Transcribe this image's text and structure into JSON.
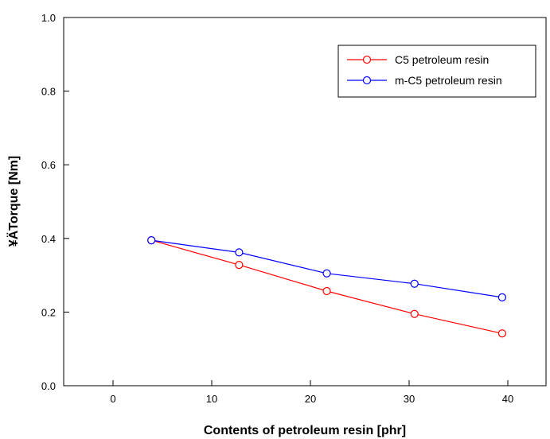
{
  "chart_data": {
    "type": "line",
    "xlabel": "Contents of petroleum resin [phr]",
    "ylabel": "¥ÄTorque [Nm]",
    "xlim": [
      -10,
      45
    ],
    "ylim": [
      0.0,
      1.0
    ],
    "x_ticks": [
      "0",
      "10",
      "20",
      "30",
      "40"
    ],
    "y_ticks": [
      "0.0",
      "0.2",
      "0.4",
      "0.6",
      "0.8",
      "1.0"
    ],
    "x": [
      0,
      10,
      20,
      30,
      40
    ],
    "series": [
      {
        "name": "C5 petroleum resin",
        "color": "#ff0000",
        "values": [
          0.395,
          0.328,
          0.257,
          0.195,
          0.142
        ]
      },
      {
        "name": "m-C5 petroleum resin",
        "color": "#0000ff",
        "values": [
          0.395,
          0.362,
          0.305,
          0.277,
          0.24
        ]
      }
    ],
    "legend_position": "top-right",
    "grid": false
  }
}
